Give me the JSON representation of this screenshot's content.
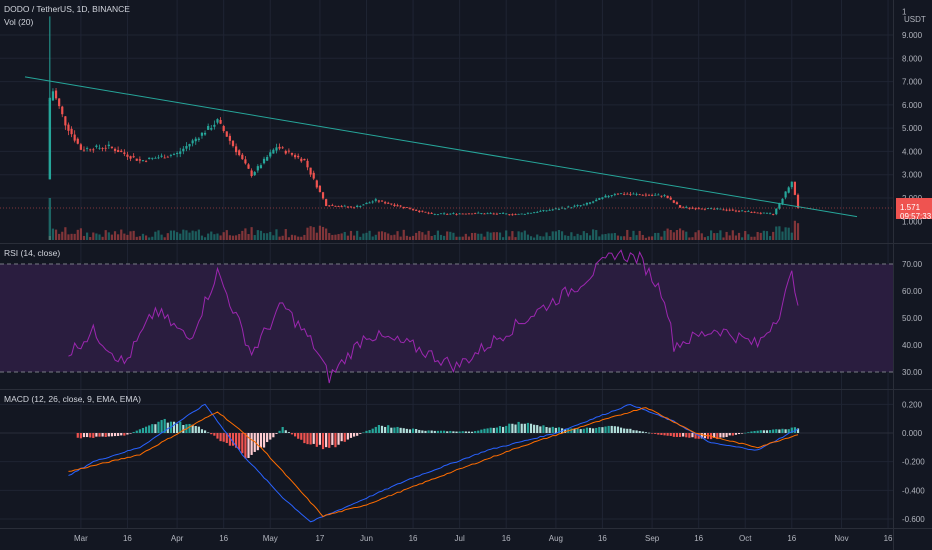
{
  "header": {
    "symbol_line": "DODO / TetherUS, 1D, BINANCE",
    "vol_label": "Vol (20)",
    "currency": "USDT"
  },
  "colors": {
    "background": "#131722",
    "grid": "#1f2433",
    "up": "#26a69a",
    "down": "#ef5350",
    "trendline": "#26a69a",
    "rsi": "#9c27b0",
    "rsi_band": "#2a1d3f",
    "macd": "#2962ff",
    "signal": "#ff6d00",
    "price_badge": "#ef5350"
  },
  "price_axis": {
    "ticks": [
      "1",
      "9.000",
      "8.000",
      "7.000",
      "6.000",
      "5.000",
      "4.000",
      "3.000",
      "2.000"
    ],
    "hidden_tick": "1.000",
    "last_price": "1.571",
    "countdown": "09:57:33"
  },
  "time_axis": {
    "ticks": [
      "Mar",
      "16",
      "Apr",
      "16",
      "May",
      "17",
      "Jun",
      "16",
      "Jul",
      "16",
      "Aug",
      "16",
      "Sep",
      "16",
      "Oct",
      "16",
      "Nov",
      "16"
    ]
  },
  "rsi_panel": {
    "label": "RSI (14, close)",
    "ticks": [
      "70.00",
      "60.00",
      "50.00",
      "40.00",
      "30.00"
    ],
    "upper_band": 70,
    "lower_band": 30
  },
  "macd_panel": {
    "label": "MACD (12, 26, close, 9, EMA, EMA)",
    "ticks": [
      "0.200",
      "0.000",
      "-0.200",
      "-0.400",
      "-0.600"
    ]
  },
  "chart_data": {
    "type": "line",
    "title": "DODO / TetherUS, 1D, BINANCE",
    "price_range": [
      1.0,
      10.0
    ],
    "price_path": [
      {
        "date": "2021-02-19",
        "price": 6.2
      },
      {
        "date": "2021-02-20",
        "price": 6.6
      },
      {
        "date": "2021-02-24",
        "price": 5.2
      },
      {
        "date": "2021-03-01",
        "price": 4.1
      },
      {
        "date": "2021-03-10",
        "price": 4.2
      },
      {
        "date": "2021-03-20",
        "price": 3.6
      },
      {
        "date": "2021-04-01",
        "price": 3.9
      },
      {
        "date": "2021-04-14",
        "price": 5.3
      },
      {
        "date": "2021-04-25",
        "price": 3.0
      },
      {
        "date": "2021-05-03",
        "price": 4.2
      },
      {
        "date": "2021-05-12",
        "price": 3.6
      },
      {
        "date": "2021-05-19",
        "price": 1.7
      },
      {
        "date": "2021-05-28",
        "price": 1.6
      },
      {
        "date": "2021-06-04",
        "price": 1.9
      },
      {
        "date": "2021-06-22",
        "price": 1.3
      },
      {
        "date": "2021-07-05",
        "price": 1.35
      },
      {
        "date": "2021-07-20",
        "price": 1.3
      },
      {
        "date": "2021-08-10",
        "price": 1.7
      },
      {
        "date": "2021-08-20",
        "price": 2.2
      },
      {
        "date": "2021-09-05",
        "price": 2.1
      },
      {
        "date": "2021-09-10",
        "price": 1.6
      },
      {
        "date": "2021-09-25",
        "price": 1.5
      },
      {
        "date": "2021-10-10",
        "price": 1.3
      },
      {
        "date": "2021-10-16",
        "price": 2.7
      },
      {
        "date": "2021-10-18",
        "price": 1.57
      }
    ],
    "trendline": [
      {
        "date": "2021-02-11",
        "price": 7.2
      },
      {
        "date": "2021-11-06",
        "price": 1.2
      }
    ],
    "rsi": {
      "range": [
        25,
        76
      ],
      "points": [
        {
          "date": "2021-02-25",
          "value": 37
        },
        {
          "date": "2021-03-05",
          "value": 45
        },
        {
          "date": "2021-03-15",
          "value": 33
        },
        {
          "date": "2021-03-25",
          "value": 53
        },
        {
          "date": "2021-04-05",
          "value": 42
        },
        {
          "date": "2021-04-14",
          "value": 67
        },
        {
          "date": "2021-04-25",
          "value": 37
        },
        {
          "date": "2021-05-05",
          "value": 55
        },
        {
          "date": "2021-05-15",
          "value": 40
        },
        {
          "date": "2021-05-20",
          "value": 28
        },
        {
          "date": "2021-06-01",
          "value": 44
        },
        {
          "date": "2021-06-15",
          "value": 40
        },
        {
          "date": "2021-06-30",
          "value": 32
        },
        {
          "date": "2021-07-15",
          "value": 44
        },
        {
          "date": "2021-07-28",
          "value": 54
        },
        {
          "date": "2021-08-08",
          "value": 62
        },
        {
          "date": "2021-08-20",
          "value": 74
        },
        {
          "date": "2021-08-28",
          "value": 72
        },
        {
          "date": "2021-09-05",
          "value": 58
        },
        {
          "date": "2021-09-08",
          "value": 40
        },
        {
          "date": "2021-09-22",
          "value": 46
        },
        {
          "date": "2021-10-05",
          "value": 40
        },
        {
          "date": "2021-10-12",
          "value": 52
        },
        {
          "date": "2021-10-16",
          "value": 66
        },
        {
          "date": "2021-10-18",
          "value": 57
        }
      ]
    },
    "macd": {
      "range": [
        -0.65,
        0.25
      ],
      "macd_line": [
        {
          "date": "2021-02-25",
          "value": -0.3
        },
        {
          "date": "2021-03-05",
          "value": -0.2
        },
        {
          "date": "2021-03-20",
          "value": -0.1
        },
        {
          "date": "2021-04-10",
          "value": 0.2
        },
        {
          "date": "2021-04-22",
          "value": -0.15
        },
        {
          "date": "2021-05-05",
          "value": -0.45
        },
        {
          "date": "2021-05-14",
          "value": -0.62
        },
        {
          "date": "2021-05-25",
          "value": -0.52
        },
        {
          "date": "2021-06-15",
          "value": -0.32
        },
        {
          "date": "2021-07-10",
          "value": -0.12
        },
        {
          "date": "2021-08-01",
          "value": 0.0
        },
        {
          "date": "2021-08-25",
          "value": 0.2
        },
        {
          "date": "2021-09-08",
          "value": 0.08
        },
        {
          "date": "2021-09-20",
          "value": -0.07
        },
        {
          "date": "2021-10-05",
          "value": -0.12
        },
        {
          "date": "2021-10-18",
          "value": 0.03
        }
      ],
      "signal_line": [
        {
          "date": "2021-02-25",
          "value": -0.27
        },
        {
          "date": "2021-03-20",
          "value": -0.15
        },
        {
          "date": "2021-04-14",
          "value": 0.15
        },
        {
          "date": "2021-04-28",
          "value": -0.1
        },
        {
          "date": "2021-05-18",
          "value": -0.58
        },
        {
          "date": "2021-06-01",
          "value": -0.5
        },
        {
          "date": "2021-06-25",
          "value": -0.3
        },
        {
          "date": "2021-07-20",
          "value": -0.1
        },
        {
          "date": "2021-08-10",
          "value": 0.05
        },
        {
          "date": "2021-08-30",
          "value": 0.18
        },
        {
          "date": "2021-09-15",
          "value": 0.0
        },
        {
          "date": "2021-10-05",
          "value": -0.1
        },
        {
          "date": "2021-10-18",
          "value": -0.01
        }
      ],
      "histogram_envelope": [
        {
          "date": "2021-02-28",
          "value": -0.04
        },
        {
          "date": "2021-03-15",
          "value": -0.02
        },
        {
          "date": "2021-03-28",
          "value": 0.1
        },
        {
          "date": "2021-04-08",
          "value": 0.05
        },
        {
          "date": "2021-04-18",
          "value": -0.1
        },
        {
          "date": "2021-04-25",
          "value": -0.2
        },
        {
          "date": "2021-05-05",
          "value": 0.04
        },
        {
          "date": "2021-05-12",
          "value": -0.08
        },
        {
          "date": "2021-05-20",
          "value": -0.12
        },
        {
          "date": "2021-06-05",
          "value": 0.06
        },
        {
          "date": "2021-06-20",
          "value": 0.02
        },
        {
          "date": "2021-07-05",
          "value": 0.01
        },
        {
          "date": "2021-07-20",
          "value": 0.08
        },
        {
          "date": "2021-08-05",
          "value": 0.03
        },
        {
          "date": "2021-08-20",
          "value": 0.05
        },
        {
          "date": "2021-09-05",
          "value": -0.02
        },
        {
          "date": "2021-09-20",
          "value": -0.05
        },
        {
          "date": "2021-10-05",
          "value": 0.02
        },
        {
          "date": "2021-10-18",
          "value": 0.04
        }
      ]
    }
  }
}
